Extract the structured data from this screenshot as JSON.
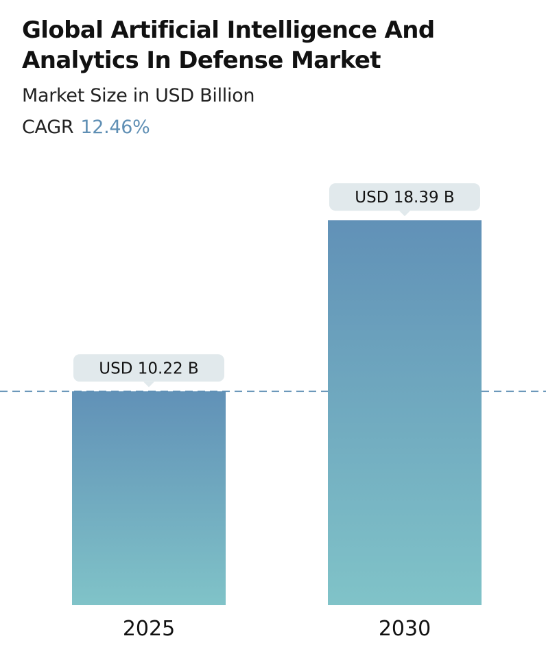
{
  "header": {
    "title_line1": "Global Artificial Intelligence And",
    "title_line2": "Analytics In Defense Market",
    "subtitle": "Market Size in USD Billion",
    "cagr_label": "CAGR",
    "cagr_value": "12.46%"
  },
  "chart_data": {
    "type": "bar",
    "categories": [
      "2025",
      "2030"
    ],
    "values": [
      10.22,
      18.39
    ],
    "value_labels": [
      "USD 10.22 B",
      "USD 18.39 B"
    ],
    "unit": "USD Billion",
    "reference_line": {
      "value": 10.22,
      "style": "dashed"
    },
    "grid": false,
    "legend": "none",
    "colors": {
      "bar_top": "#6191b7",
      "bar_bottom": "#80c3c8",
      "callout_bg": "#e1e9ec",
      "reference_line": "#5f8fb4"
    }
  }
}
